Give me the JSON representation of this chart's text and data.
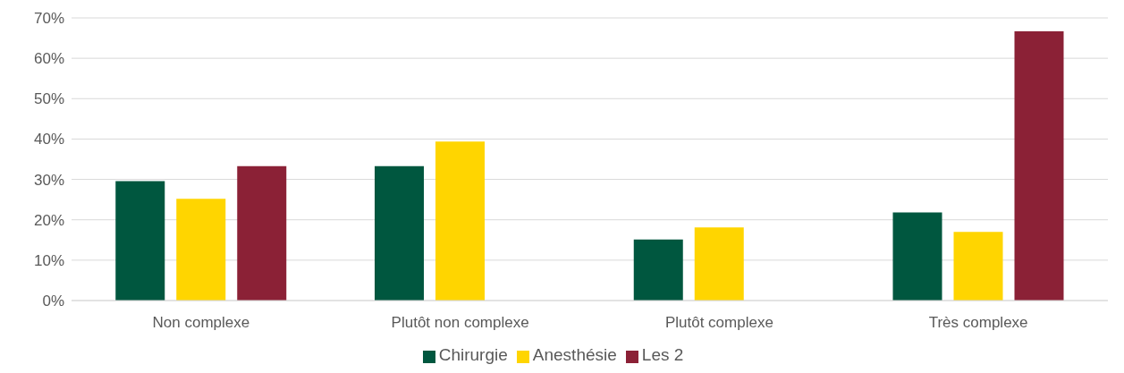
{
  "chart_data": {
    "type": "bar",
    "categories": [
      "Non complexe",
      "Plutôt non complexe",
      "Plutôt complexe",
      "Très complexe"
    ],
    "series": [
      {
        "name": "Chirurgie",
        "color": "#00573f",
        "values": [
          29.6,
          33.3,
          15.1,
          21.8
        ]
      },
      {
        "name": "Anesthésie",
        "color": "#ffd500",
        "values": [
          25.2,
          39.4,
          18.1,
          17.0
        ]
      },
      {
        "name": "Les 2",
        "color": "#8b2136",
        "values": [
          33.3,
          0,
          0,
          66.7
        ]
      }
    ],
    "ylim": [
      0,
      70
    ],
    "yticks": [
      {
        "value": 0,
        "label": "0%"
      },
      {
        "value": 10,
        "label": "10%"
      },
      {
        "value": 20,
        "label": "20%"
      },
      {
        "value": 30,
        "label": "30%"
      },
      {
        "value": 40,
        "label": "40%"
      },
      {
        "value": 50,
        "label": "50%"
      },
      {
        "value": 60,
        "label": "60%"
      },
      {
        "value": 70,
        "label": "70%"
      }
    ],
    "grid": "y",
    "legend": "bottom"
  }
}
